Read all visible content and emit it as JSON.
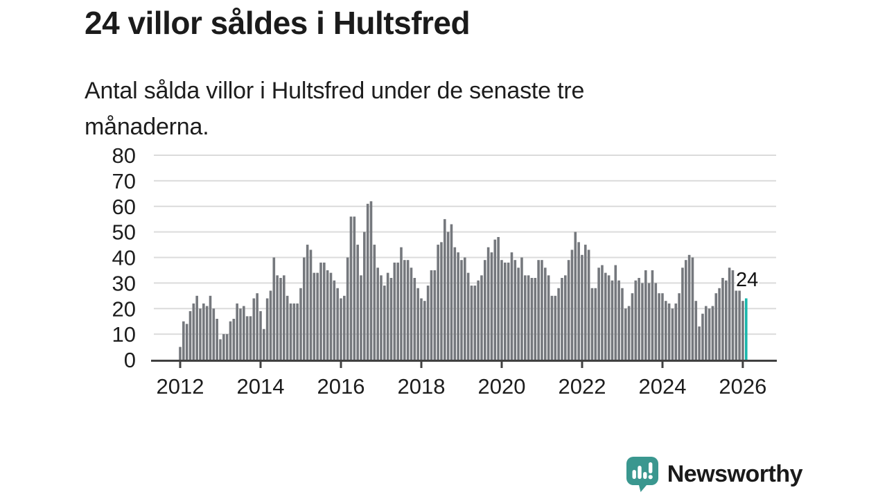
{
  "header": {
    "title": "24 villor såldes i Hultsfred",
    "subtitle": "Antal sålda villor i Hultsfred under de senaste tre månaderna."
  },
  "chart_data": {
    "type": "bar",
    "title": "24 villor såldes i Hultsfred",
    "subtitle": "Antal sålda villor i Hultsfred under de senaste tre månaderna.",
    "xlabel": "",
    "ylabel": "",
    "ylim": [
      0,
      80
    ],
    "y_ticks": [
      0,
      10,
      20,
      30,
      40,
      50,
      60,
      70,
      80
    ],
    "grid": true,
    "x_tick_labels": [
      "2012",
      "2014",
      "2016",
      "2018",
      "2020",
      "2022",
      "2024",
      "2026"
    ],
    "x_tick_month_index": [
      0,
      24,
      48,
      72,
      96,
      120,
      144,
      168
    ],
    "x_start_label": "2012",
    "x_end_label": "2026",
    "values": [
      5,
      15,
      14,
      19,
      22,
      25,
      20,
      22,
      21,
      25,
      20,
      16,
      8,
      10,
      10,
      15,
      16,
      22,
      20,
      21,
      17,
      17,
      24,
      26,
      19,
      12,
      24,
      27,
      40,
      33,
      32,
      33,
      25,
      22,
      22,
      22,
      28,
      40,
      45,
      43,
      34,
      34,
      38,
      38,
      35,
      34,
      31,
      28,
      24,
      25,
      40,
      56,
      56,
      45,
      33,
      50,
      61,
      62,
      45,
      36,
      33,
      29,
      34,
      32,
      38,
      38,
      44,
      39,
      39,
      36,
      32,
      28,
      24,
      23,
      29,
      35,
      35,
      45,
      46,
      55,
      50,
      53,
      44,
      42,
      39,
      40,
      34,
      29,
      29,
      31,
      33,
      39,
      44,
      42,
      47,
      48,
      39,
      38,
      38,
      42,
      39,
      36,
      40,
      33,
      33,
      32,
      32,
      39,
      39,
      36,
      33,
      25,
      25,
      28,
      32,
      33,
      39,
      43,
      50,
      46,
      41,
      45,
      43,
      28,
      28,
      36,
      37,
      34,
      33,
      31,
      37,
      31,
      28,
      20,
      21,
      26,
      31,
      32,
      30,
      35,
      30,
      35,
      30,
      26,
      26,
      23,
      22,
      20,
      22,
      26,
      36,
      39,
      41,
      40,
      23,
      13,
      18,
      21,
      20,
      21,
      26,
      28,
      32,
      31,
      36,
      35,
      27,
      27,
      23,
      24
    ],
    "highlight_last": true,
    "annotation": {
      "label": "24",
      "value": 24
    },
    "colors": {
      "bar": "#75787D",
      "highlight": "#1AB6AB",
      "grid": "#DBDBDB",
      "axis": "#404040",
      "text": "#1A1A1A"
    }
  },
  "footer": {
    "brand": "Newsworthy",
    "brand_color": "#3A978F"
  }
}
